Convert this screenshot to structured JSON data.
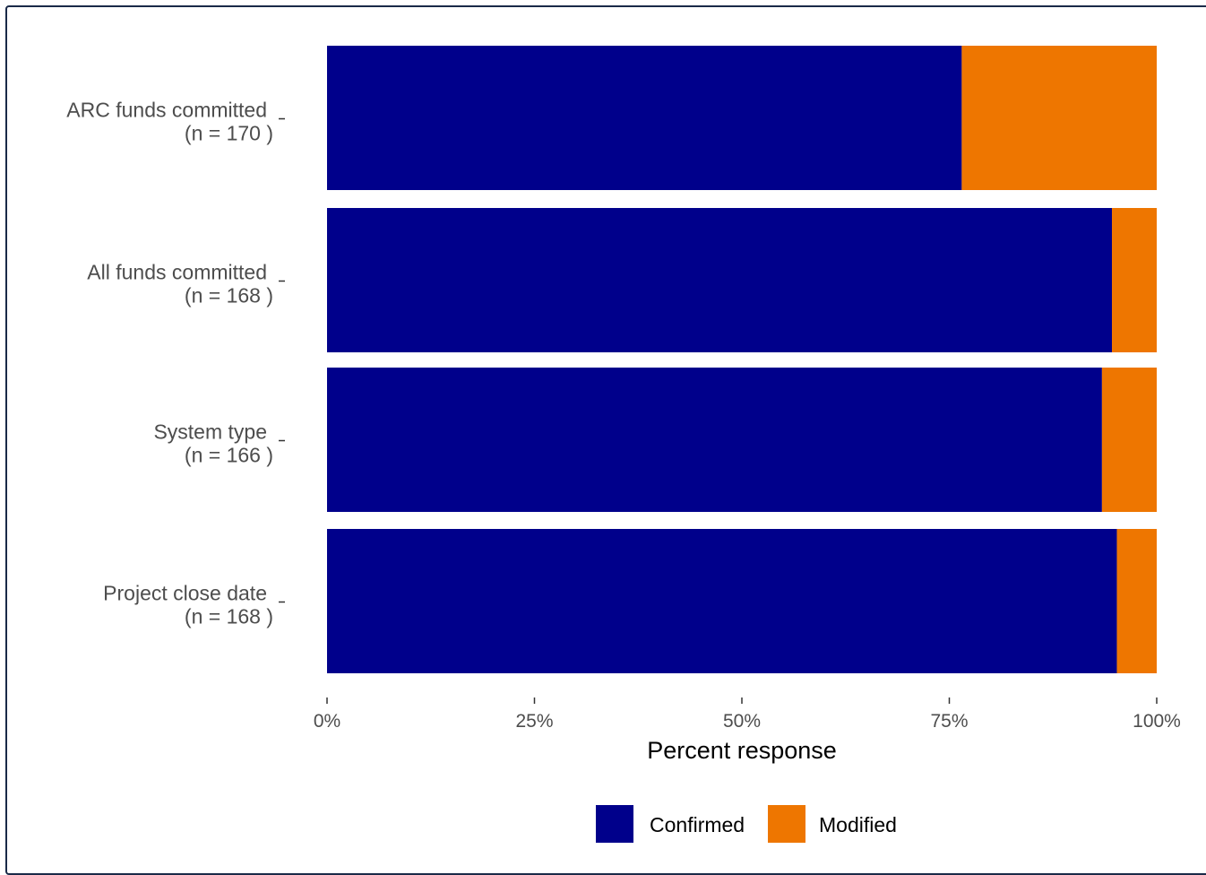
{
  "chart_data": {
    "type": "bar",
    "orientation": "horizontal",
    "stacked": true,
    "categories": [
      {
        "label": "ARC funds committed",
        "n_label": "(n = 170 )"
      },
      {
        "label": "All funds committed",
        "n_label": "(n = 168 )"
      },
      {
        "label": "System type",
        "n_label": "(n = 166 )"
      },
      {
        "label": "Project close date",
        "n_label": "(n = 168 )"
      }
    ],
    "series": [
      {
        "name": "Confirmed",
        "color": "#00008b",
        "values": [
          76.5,
          94.6,
          93.4,
          95.2
        ]
      },
      {
        "name": "Modified",
        "color": "#ee7600",
        "values": [
          23.5,
          5.4,
          6.6,
          4.8
        ]
      }
    ],
    "xlabel": "Percent response",
    "xlim": [
      0,
      100
    ],
    "xticks": [
      "0%",
      "25%",
      "50%",
      "75%",
      "100%"
    ],
    "xtick_values": [
      0,
      25,
      50,
      75,
      100
    ],
    "legend_position": "bottom",
    "grid": false
  }
}
